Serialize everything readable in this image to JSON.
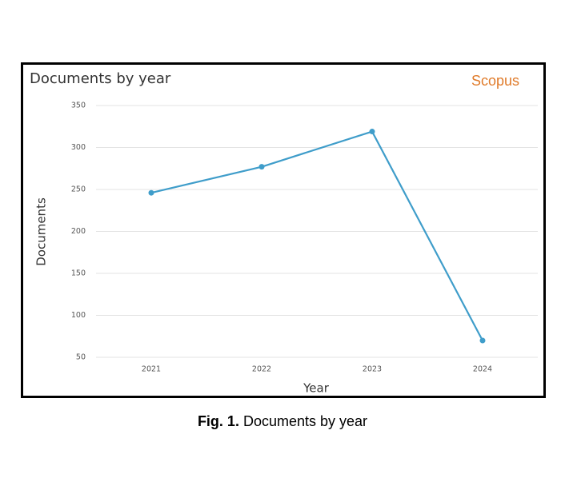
{
  "chart_data": {
    "type": "line",
    "title": "Documents by year",
    "source": "Scopus",
    "x_label": "Year",
    "y_label": "Documents",
    "categories": [
      "2021",
      "2022",
      "2023",
      "2024"
    ],
    "series": [
      {
        "name": "Documents",
        "color": "#3f9dca",
        "values": [
          246,
          277,
          319,
          70
        ]
      }
    ],
    "ylim": [
      50,
      350
    ],
    "yticks": [
      50,
      100,
      150,
      200,
      250,
      300,
      350
    ],
    "grid": true
  },
  "caption": {
    "label": "Fig. 1.",
    "text": "Documents by year"
  }
}
